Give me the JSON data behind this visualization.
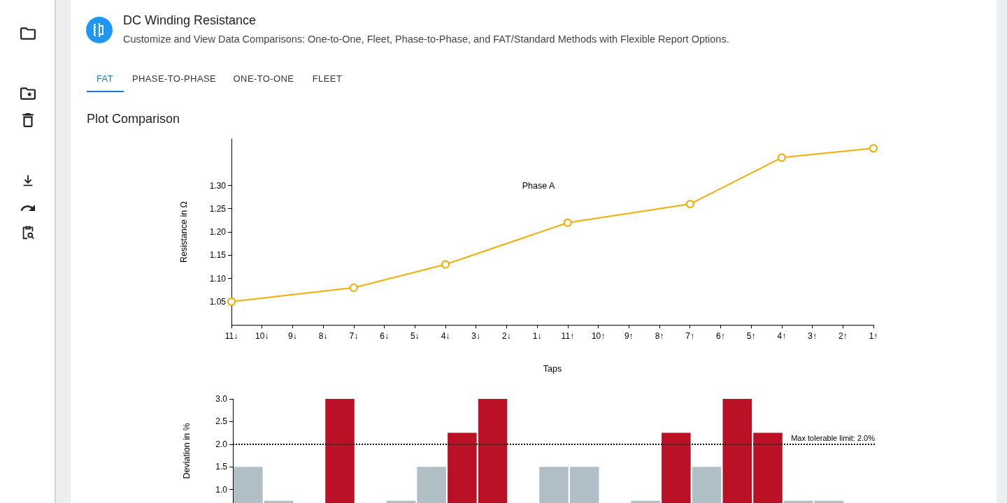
{
  "chart_data": [
    {
      "type": "other",
      "title": "DC Winding Resistance",
      "subtitle": "Customize and View Data Comparisons: One-to-One, Fleet, Phase-to-Phase, and FAT/Standard Methods with Flexible Report Options.",
      "annotations": [
        "FAT",
        "PHASE-TO-PHASE",
        "ONE-TO-ONE",
        "FLEET",
        "Plot Comparison"
      ]
    },
    {
      "type": "line",
      "title": "Phase A",
      "xlabel": "Taps",
      "ylabel": "Resistance in Ω",
      "categories": [
        "11↓",
        "10↓",
        "9↓",
        "8↓",
        "7↓",
        "6↓",
        "5↓",
        "4↓",
        "3↓",
        "2↓",
        "1↓",
        "11↑",
        "10↑",
        "9↑",
        "8↑",
        "7↑",
        "6↑",
        "5↑",
        "4↑",
        "3↑",
        "2↑",
        "1↑"
      ],
      "series": [
        {
          "color": "#f2ad00",
          "values": [
            1.05,
            null,
            null,
            null,
            1.08,
            null,
            null,
            1.13,
            null,
            null,
            null,
            1.22,
            null,
            null,
            null,
            1.26,
            null,
            null,
            1.36,
            null,
            null,
            1.38
          ]
        }
      ],
      "ylim": [
        1.0,
        1.4
      ],
      "yticks": [
        1.05,
        {
          "value": 1.1,
          "label": "1.10"
        },
        1.15,
        {
          "value": 1.2,
          "label": "1.20"
        },
        1.25,
        {
          "value": 1.3,
          "label": "1.30"
        }
      ],
      "marker": "circle",
      "grid": false
    },
    {
      "type": "bar",
      "ylabel": "Deviation in %",
      "categories": [
        null,
        null,
        null,
        null,
        null,
        null,
        null,
        null,
        null,
        null,
        null,
        null,
        null,
        null,
        null,
        null,
        null,
        null,
        null,
        null,
        null
      ],
      "values": [
        1.5,
        0.75,
        null,
        3.0,
        null,
        0.75,
        1.5,
        2.25,
        3.0,
        null,
        1.5,
        1.5,
        null,
        0.75,
        2.25,
        1.5,
        3.0,
        2.25,
        0.75,
        0.75,
        null
      ],
      "colors": [
        "#b0bec5",
        "#b0bec5",
        "#b0bec5",
        "#ba1126",
        "#b0bec5",
        "#b0bec5",
        "#b0bec5",
        "#ba1126",
        "#ba1126",
        "#b0bec5",
        "#b0bec5",
        "#b0bec5",
        "#b0bec5",
        "#b0bec5",
        "#ba1126",
        "#b0bec5",
        "#ba1126",
        "#ba1126",
        "#b0bec5",
        "#b0bec5",
        "#b0bec5"
      ],
      "ylim": [
        0.7,
        3.0
      ],
      "yticks": [
        {
          "value": 1,
          "label": "1.0"
        },
        1.5,
        {
          "value": 2,
          "label": "2.0"
        },
        2.5,
        {
          "value": 3,
          "label": "3.0"
        }
      ],
      "ref_lines": [
        {
          "axis": "y",
          "value": 2.0,
          "label": "Max tolerable limit: 2.0%",
          "color": "#000000",
          "line_style": "dotted"
        }
      ],
      "tick_labels": "y",
      "grid": false
    }
  ]
}
